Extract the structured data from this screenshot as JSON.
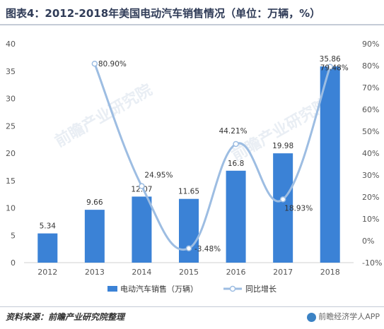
{
  "title": "图表4：2012-2018年美国电动汽车销售情况（单位：万辆，%）",
  "source": "资料来源：前瞻产业研究院整理",
  "credit": "前瞻经济学人APP",
  "watermark": "前瞻产业研究院",
  "chart_data": {
    "type": "bar+line",
    "categories": [
      "2012",
      "2013",
      "2014",
      "2015",
      "2016",
      "2017",
      "2018"
    ],
    "series": [
      {
        "name": "电动汽车销售（万辆）",
        "type": "bar",
        "axis": "left",
        "color": "#3b82d6",
        "values": [
          5.34,
          9.66,
          12.07,
          11.65,
          16.8,
          19.98,
          35.86
        ],
        "labels": [
          "5.34",
          "9.66",
          "12.07",
          "11.65",
          "16.8",
          "19.98",
          "35.86"
        ]
      },
      {
        "name": "同比增长",
        "type": "line",
        "axis": "right",
        "color": "#9dbde2",
        "x": [
          "2013",
          "2014",
          "2015",
          "2016",
          "2017",
          "2018"
        ],
        "values": [
          80.9,
          24.95,
          -3.48,
          44.21,
          18.93,
          79.48
        ],
        "labels": [
          "80.90%",
          "24.95%",
          "-3.48%",
          "44.21%",
          "18.93%",
          "79.48%"
        ]
      }
    ],
    "y_left": {
      "min": 0,
      "max": 40,
      "step": 5
    },
    "y_right": {
      "min": -10,
      "max": 90,
      "step": 10,
      "suffix": "%"
    },
    "grid": false,
    "legend_position": "bottom"
  }
}
